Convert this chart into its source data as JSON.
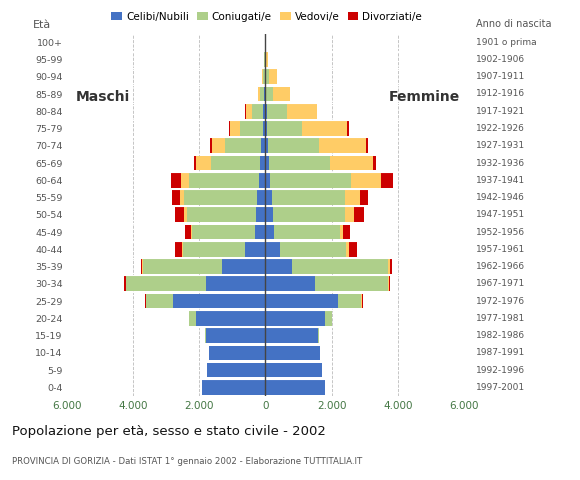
{
  "age_groups": [
    "0-4",
    "5-9",
    "10-14",
    "15-19",
    "20-24",
    "25-29",
    "30-34",
    "35-39",
    "40-44",
    "45-49",
    "50-54",
    "55-59",
    "60-64",
    "65-69",
    "70-74",
    "75-79",
    "80-84",
    "85-89",
    "90-94",
    "95-99",
    "100+"
  ],
  "birth_years": [
    "1997-2001",
    "1992-1996",
    "1987-1991",
    "1982-1986",
    "1977-1981",
    "1972-1976",
    "1967-1971",
    "1962-1966",
    "1957-1961",
    "1952-1956",
    "1947-1951",
    "1942-1946",
    "1937-1941",
    "1932-1936",
    "1927-1931",
    "1922-1926",
    "1917-1921",
    "1912-1916",
    "1907-1911",
    "1902-1906",
    "1901 o prima"
  ],
  "males": {
    "celibi": [
      1900,
      1750,
      1700,
      1800,
      2100,
      2800,
      1800,
      1300,
      600,
      320,
      280,
      250,
      200,
      150,
      120,
      80,
      60,
      30,
      20,
      10,
      5
    ],
    "coniugati": [
      0,
      0,
      10,
      30,
      200,
      800,
      2400,
      2400,
      1900,
      1900,
      2100,
      2200,
      2100,
      1500,
      1100,
      700,
      350,
      120,
      60,
      20,
      5
    ],
    "vedovi": [
      0,
      0,
      0,
      0,
      0,
      5,
      10,
      20,
      30,
      40,
      70,
      120,
      250,
      450,
      400,
      300,
      180,
      80,
      30,
      10,
      2
    ],
    "divorziati": [
      0,
      0,
      0,
      0,
      5,
      20,
      50,
      50,
      200,
      180,
      280,
      250,
      300,
      60,
      50,
      30,
      10,
      0,
      0,
      0,
      0
    ]
  },
  "females": {
    "nubili": [
      1800,
      1700,
      1650,
      1600,
      1800,
      2200,
      1500,
      800,
      450,
      250,
      220,
      200,
      150,
      100,
      80,
      60,
      50,
      30,
      20,
      10,
      5
    ],
    "coniugate": [
      0,
      0,
      10,
      30,
      200,
      700,
      2200,
      2900,
      2000,
      2000,
      2200,
      2200,
      2450,
      1850,
      1550,
      1050,
      600,
      200,
      80,
      20,
      5
    ],
    "vedove": [
      0,
      0,
      0,
      0,
      5,
      20,
      30,
      50,
      80,
      100,
      250,
      450,
      900,
      1300,
      1400,
      1350,
      900,
      500,
      250,
      50,
      10
    ],
    "divorziate": [
      0,
      0,
      0,
      0,
      5,
      20,
      50,
      70,
      230,
      200,
      300,
      250,
      350,
      80,
      80,
      60,
      15,
      0,
      0,
      0,
      0
    ]
  },
  "colors": {
    "celibi": "#4472C4",
    "coniugati": "#AECF8A",
    "vedovi": "#FFCC66",
    "divorziati": "#CC0000"
  },
  "legend_labels": [
    "Celibi/Nubili",
    "Coniugati/e",
    "Vedovi/e",
    "Divorziati/e"
  ],
  "title": "Popolazione per età, sesso e stato civile - 2002",
  "subtitle": "PROVINCIA DI GORIZIA - Dati ISTAT 1° gennaio 2002 - Elaborazione TUTTITALIA.IT",
  "xlabel_left": "Maschi",
  "xlabel_right": "Femmine",
  "ylabel": "Età",
  "ylabel_right": "Anno di nascita",
  "xlim": 6000,
  "background_color": "#FFFFFF",
  "grid_color": "#BBBBBB"
}
